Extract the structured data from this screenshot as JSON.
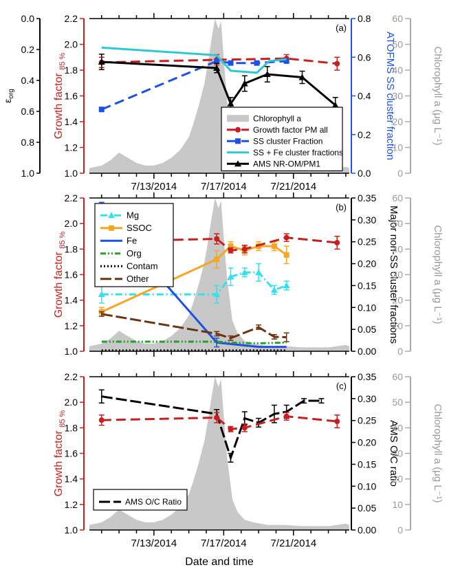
{
  "figure": {
    "xlabel": "Date and time"
  },
  "chart_data": [
    {
      "panel": "(a)",
      "type": "line",
      "x_ticks": [
        {
          "day": 13,
          "label": "7/13/2014"
        },
        {
          "day": 17,
          "label": "7/17/2014"
        },
        {
          "day": 21,
          "label": "7/21/2014"
        }
      ],
      "xlim": [
        9.3,
        24.2
      ],
      "ylabel_left": "Growth factor 85 %",
      "ylim_left": [
        1.0,
        2.2
      ],
      "ylabel_outer_left": "εorg",
      "ylim_outer_left": [
        0.0,
        1.0
      ],
      "ylabel_right": "ATOFMS SS cluster fraction",
      "ylim_right": [
        0.0,
        0.8
      ],
      "ylabel_far_right": "Chlorophyll a (μg L⁻¹)",
      "ylim_far_right": [
        0,
        60
      ],
      "legend_position": "bottom-right",
      "series": [
        {
          "name": "Growth factor PM all",
          "axis": "left",
          "color": "#c81e1e",
          "style": "dashed",
          "marker": "circle",
          "x": [
            10.0,
            16.6,
            20.6,
            23.5
          ],
          "y": [
            1.86,
            1.88,
            1.89,
            1.85
          ],
          "err": [
            0.04,
            0.04,
            0.03,
            0.05
          ]
        },
        {
          "name": "SS cluster Fraction",
          "axis": "right",
          "color": "#1e50e6",
          "style": "dashed",
          "marker": "square",
          "x": [
            10.0,
            16.6,
            17.4,
            18.9,
            20.6
          ],
          "y": [
            0.33,
            0.58,
            0.57,
            0.57,
            0.58
          ],
          "err": [
            0,
            0,
            0,
            0,
            0
          ]
        },
        {
          "name": "SS + Fe cluster fractions",
          "axis": "right",
          "color": "#2ec8d2",
          "style": "solid",
          "marker": "none",
          "x": [
            10.0,
            16.6,
            17.4,
            18.9,
            19.6,
            20.6
          ],
          "y": [
            0.65,
            0.61,
            0.53,
            0.52,
            0.58,
            0.59
          ],
          "err": [
            0,
            0,
            0,
            0,
            0,
            0
          ]
        },
        {
          "name": "AMS NR-OM/PM1",
          "axis": "outer_left",
          "color": "#000000",
          "style": "solid",
          "marker": "triangle",
          "x": [
            10.0,
            16.6,
            17.4,
            18.2,
            19.5,
            21.5,
            23.4
          ],
          "y": [
            0.28,
            0.32,
            0.55,
            0.42,
            0.36,
            0.38,
            0.56
          ],
          "err": [
            0.05,
            0.03,
            0.04,
            0.05,
            0.05,
            0.04,
            0.05
          ]
        }
      ]
    },
    {
      "panel": "(b)",
      "type": "line",
      "x_ticks": [
        {
          "day": 13,
          "label": ""
        },
        {
          "day": 17,
          "label": ""
        },
        {
          "day": 21,
          "label": ""
        }
      ],
      "xlim": [
        9.3,
        24.2
      ],
      "ylabel_left": "Growth factor 85 %",
      "ylim_left": [
        1.0,
        2.2
      ],
      "ylabel_right": "Major non-SS cluster fractions",
      "ylim_right": [
        0.0,
        0.35
      ],
      "ylabel_far_right": "Chlorophyll a (μg L⁻¹)",
      "ylim_far_right": [
        0,
        60
      ],
      "legend_position": "top-left",
      "series": [
        {
          "name": "Mg",
          "axis": "right",
          "color": "#34e0ee",
          "style": "dashdot",
          "marker": "triangle",
          "x": [
            10.0,
            16.6,
            17.4,
            18.2,
            19.0,
            19.9,
            20.6
          ],
          "y": [
            0.13,
            0.13,
            0.17,
            0.18,
            0.18,
            0.14,
            0.15
          ],
          "err": [
            0.02,
            0.02,
            0.02,
            0.01,
            0.02,
            0.01,
            0.01
          ]
        },
        {
          "name": "SSOC",
          "axis": "right",
          "color": "#f5a623",
          "style": "solid",
          "marker": "square",
          "x": [
            10.0,
            16.6,
            17.4,
            18.2,
            19.0,
            19.9,
            20.6
          ],
          "y": [
            0.09,
            0.21,
            0.24,
            0.23,
            0.24,
            0.24,
            0.22
          ],
          "err": [
            0.01,
            0.02,
            0.01,
            0.01,
            0.01,
            0.01,
            0.02
          ]
        },
        {
          "name": "Fe",
          "axis": "right",
          "color": "#1e50e6",
          "style": "solid",
          "marker": "none",
          "x": [
            10.0,
            16.6,
            19.0,
            20.6
          ],
          "y": [
            0.32,
            0.02,
            0.01,
            0.01
          ],
          "err": [
            0.02,
            0.01,
            0,
            0
          ]
        },
        {
          "name": "Org",
          "axis": "right",
          "color": "#2a9d2a",
          "style": "dashdotdot",
          "marker": "none",
          "x": [
            10.0,
            16.6,
            17.4,
            19.0,
            20.6
          ],
          "y": [
            0.022,
            0.022,
            0.02,
            0.018,
            0.02
          ],
          "err": [
            0,
            0,
            0,
            0,
            0
          ]
        },
        {
          "name": "Contam",
          "axis": "right",
          "color": "#000000",
          "style": "dotted",
          "marker": "none",
          "x": [
            10.0,
            16.6,
            20.6
          ],
          "y": [
            0.002,
            0.002,
            0.002
          ],
          "err": [
            0,
            0,
            0
          ]
        },
        {
          "name": "Other",
          "axis": "right",
          "color": "#6b3510",
          "style": "longdash",
          "marker": "none",
          "x": [
            10.0,
            16.6,
            17.4,
            19.0,
            19.9,
            20.6
          ],
          "y": [
            0.085,
            0.04,
            0.03,
            0.055,
            0.033,
            0.032
          ],
          "err": [
            0.005,
            0.005,
            0.005,
            0.005,
            0.005,
            0.01
          ]
        },
        {
          "name": "Growth factor PM all",
          "axis": "left",
          "color": "#c81e1e",
          "style": "dashed",
          "marker": "circle",
          "legend": false,
          "x": [
            10.0,
            16.6,
            17.4,
            18.2,
            20.6,
            23.5
          ],
          "y": [
            1.86,
            1.88,
            1.79,
            1.8,
            1.89,
            1.85
          ],
          "err": [
            0.04,
            0.04,
            0.02,
            0.03,
            0.03,
            0.05
          ]
        }
      ]
    },
    {
      "panel": "(c)",
      "type": "line",
      "x_ticks": [
        {
          "day": 13,
          "label": "7/13/2014"
        },
        {
          "day": 17,
          "label": "7/17/2014"
        },
        {
          "day": 21,
          "label": "7/21/2014"
        }
      ],
      "xlim": [
        9.3,
        24.2
      ],
      "ylabel_left": "Growth factor 85 %",
      "ylim_left": [
        1.0,
        2.2
      ],
      "ylabel_right": "AMS O/C ratio",
      "ylim_right": [
        0.0,
        0.35
      ],
      "ylabel_far_right": "Chlorophyll a (μg L⁻¹)",
      "ylim_far_right": [
        0,
        60
      ],
      "legend_position": "bottom-left",
      "series": [
        {
          "name": "AMS O/C Ratio",
          "axis": "right",
          "color": "#000000",
          "style": "longdash",
          "marker": "none",
          "x": [
            10.0,
            16.6,
            17.4,
            18.2,
            19.0,
            19.9,
            20.6,
            21.6,
            22.6
          ],
          "y": [
            0.305,
            0.265,
            0.165,
            0.255,
            0.245,
            0.265,
            0.27,
            0.295,
            0.295
          ],
          "err": [
            0.015,
            0.01,
            0.01,
            0.015,
            0.01,
            0.02,
            0.015,
            0.005,
            0.005
          ]
        },
        {
          "name": "Growth factor PM all",
          "axis": "left",
          "color": "#c81e1e",
          "style": "dashed",
          "marker": "circle",
          "legend": false,
          "x": [
            10.0,
            16.6,
            17.4,
            18.2,
            20.6,
            23.5
          ],
          "y": [
            1.86,
            1.88,
            1.79,
            1.8,
            1.89,
            1.85
          ],
          "err": [
            0.04,
            0.04,
            0.02,
            0.03,
            0.03,
            0.05
          ]
        }
      ]
    }
  ],
  "chlorophyll": {
    "name": "Chlorophyll a",
    "color": "#c8c8c8",
    "x": [
      9.3,
      10.0,
      10.5,
      11.0,
      11.5,
      12.0,
      12.5,
      13.0,
      13.5,
      14.0,
      14.5,
      15.0,
      15.3,
      15.6,
      15.9,
      16.1,
      16.3,
      16.5,
      16.7,
      16.85,
      17.0,
      17.2,
      17.5,
      17.8,
      18.2,
      18.7,
      19.5,
      20.5,
      21.5,
      22.5,
      23.0,
      23.5,
      24.0,
      24.2
    ],
    "y": [
      2,
      3,
      5,
      8,
      6,
      4,
      3,
      3,
      4,
      6,
      9,
      14,
      20,
      27,
      35,
      43,
      52,
      60,
      56,
      59,
      45,
      28,
      12,
      7,
      4,
      3,
      2,
      2,
      1.5,
      1.5,
      1.5,
      2,
      2.5,
      2
    ]
  }
}
